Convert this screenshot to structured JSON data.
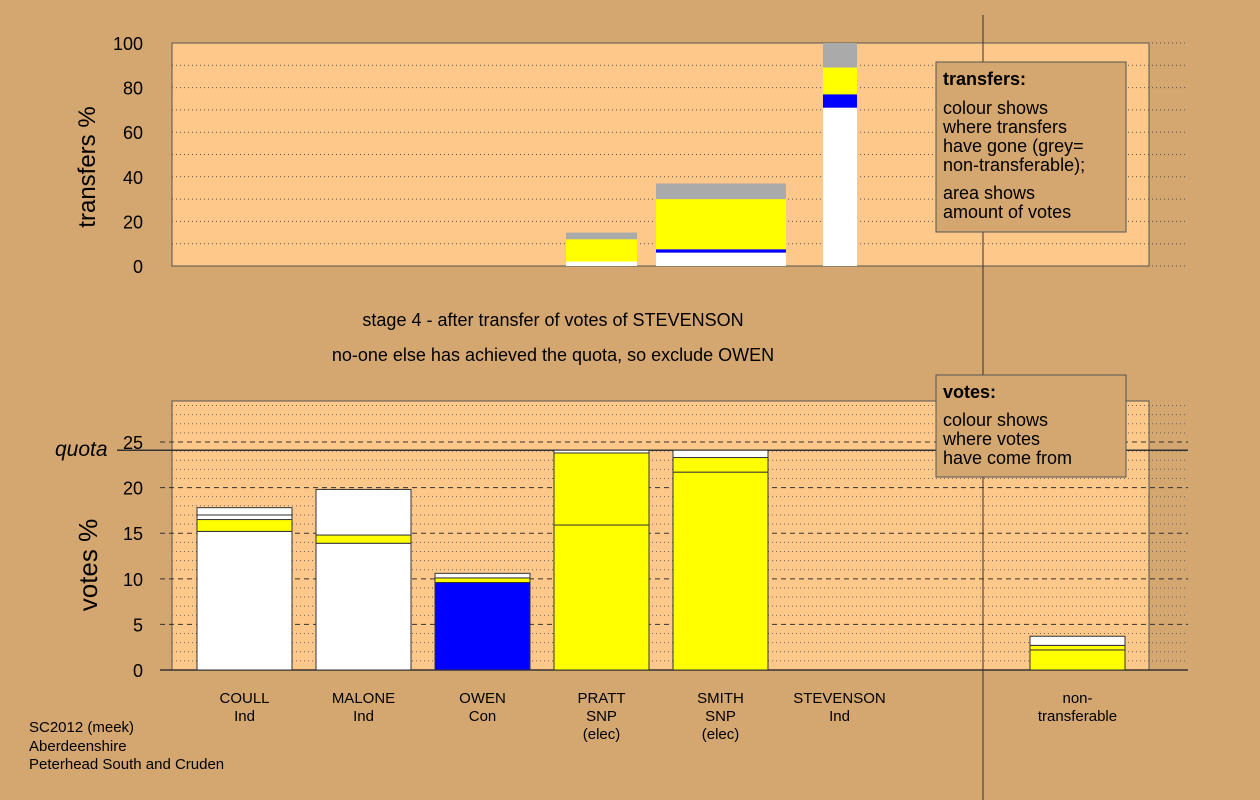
{
  "stage_title": "stage 4 - after transfer of votes of STEVENSON",
  "stage_note": "no-one else has achieved the quota, so exclude OWEN",
  "footer": [
    "SC2012 (meek)",
    "Aberdeenshire",
    "Peterhead South and Cruden"
  ],
  "transfers_box": {
    "title": "transfers:",
    "lines": [
      "colour shows",
      "where transfers",
      "have gone (grey=",
      "non-transferable);"
    ],
    "lines2": [
      "area shows",
      "amount of votes"
    ]
  },
  "votes_box": {
    "title": "votes:",
    "lines": [
      "colour shows",
      "where votes",
      "have come from"
    ]
  },
  "colors": {
    "background": "#d4a670",
    "plot_background": "#fec88a",
    "white": "#ffffff",
    "yellow": "#ffff00",
    "blue": "#0000ff",
    "grey": "#aaaaaa"
  },
  "chart_data": [
    {
      "type": "bar",
      "title": "",
      "ylabel": "transfers %",
      "ylim": [
        0,
        100
      ],
      "yticks": [
        0,
        20,
        40,
        60,
        80,
        100
      ],
      "bars": [
        {
          "segments": [
            {
              "color": "white",
              "value": 2
            },
            {
              "color": "yellow",
              "value": 10
            },
            {
              "color": "grey",
              "value": 3
            }
          ]
        },
        {
          "segments": [
            {
              "color": "white",
              "value": 6
            },
            {
              "color": "blue",
              "value": 1.5
            },
            {
              "color": "yellow",
              "value": 22.5
            },
            {
              "color": "grey",
              "value": 7
            }
          ]
        },
        {
          "segments": [
            {
              "color": "white",
              "value": 71
            },
            {
              "color": "blue",
              "value": 6
            },
            {
              "color": "yellow",
              "value": 12
            },
            {
              "color": "grey",
              "value": 11
            }
          ]
        }
      ]
    },
    {
      "type": "bar",
      "title": "",
      "ylabel": "votes %",
      "ylim": [
        0,
        29.5
      ],
      "yticks": [
        0,
        5,
        10,
        15,
        20,
        25
      ],
      "quota": 24.1,
      "quota_label": "quota",
      "categories": [
        {
          "name": "COULL",
          "party": "Ind",
          "note": ""
        },
        {
          "name": "MALONE",
          "party": "Ind",
          "note": ""
        },
        {
          "name": "OWEN",
          "party": "Con",
          "note": ""
        },
        {
          "name": "PRATT",
          "party": "SNP",
          "note": "(elec)"
        },
        {
          "name": "SMITH",
          "party": "SNP",
          "note": "(elec)"
        },
        {
          "name": "STEVENSON",
          "party": "Ind",
          "note": ""
        },
        {
          "name": "non-",
          "party": "transferable",
          "note": ""
        }
      ],
      "bars": [
        {
          "segments": [
            {
              "color": "white",
              "value": 15.2
            },
            {
              "color": "yellow",
              "value": 1.3
            },
            {
              "color": "white",
              "value": 0.5
            },
            {
              "color": "white",
              "value": 0.8
            }
          ]
        },
        {
          "segments": [
            {
              "color": "white",
              "value": 13.9
            },
            {
              "color": "yellow",
              "value": 0.9
            },
            {
              "color": "white",
              "value": 5
            }
          ]
        },
        {
          "segments": [
            {
              "color": "blue",
              "value": 9.6
            },
            {
              "color": "yellow",
              "value": 0.5
            },
            {
              "color": "white",
              "value": 0.5
            }
          ]
        },
        {
          "segments": [
            {
              "color": "yellow",
              "value": 15.9
            },
            {
              "color": "yellow",
              "value": 7.9
            },
            {
              "color": "white",
              "value": 0.3
            }
          ]
        },
        {
          "segments": [
            {
              "color": "yellow",
              "value": 21.7
            },
            {
              "color": "yellow",
              "value": 1.6
            },
            {
              "color": "white",
              "value": 0.8
            }
          ]
        },
        {
          "segments": []
        },
        {
          "segments": [
            {
              "color": "yellow",
              "value": 2.2
            },
            {
              "color": "yellow",
              "value": 0.5
            },
            {
              "color": "white",
              "value": 1
            }
          ]
        }
      ]
    }
  ]
}
